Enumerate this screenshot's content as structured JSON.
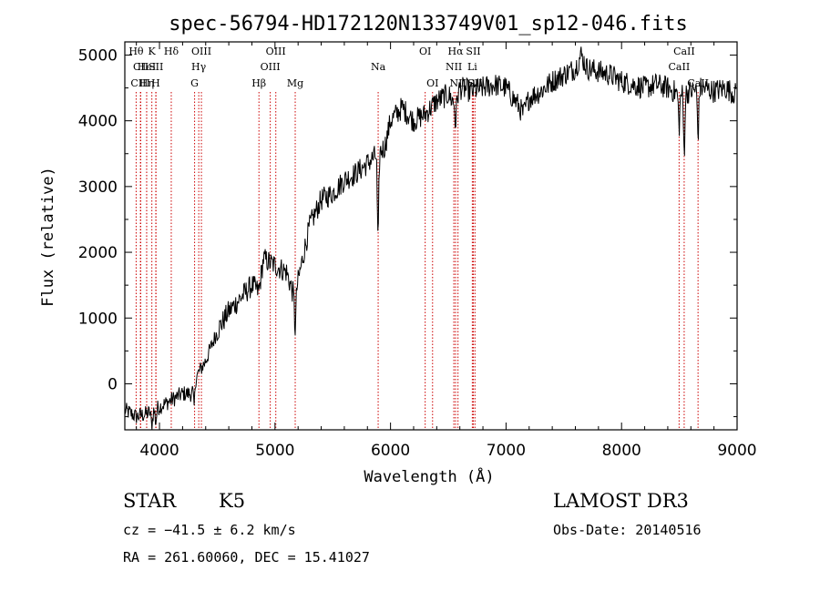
{
  "chart_data": {
    "type": "line",
    "title": "spec-56794-HD172120N133749V01_sp12-046.fits",
    "xlabel": "Wavelength (Å)",
    "ylabel": "Flux (relative)",
    "xlim": [
      3700,
      9000
    ],
    "ylim": [
      -700,
      5200
    ],
    "xticks": [
      4000,
      5000,
      6000,
      7000,
      8000,
      9000
    ],
    "yticks": [
      0,
      1000,
      2000,
      3000,
      4000,
      5000
    ],
    "spectrum_knots": [
      [
        3700,
        -400
      ],
      [
        3800,
        -500
      ],
      [
        3900,
        -450
      ],
      [
        4000,
        -350
      ],
      [
        4100,
        -250
      ],
      [
        4200,
        -150
      ],
      [
        4280,
        -150
      ],
      [
        4300,
        50
      ],
      [
        4400,
        350
      ],
      [
        4500,
        800
      ],
      [
        4600,
        1100
      ],
      [
        4700,
        1300
      ],
      [
        4800,
        1500
      ],
      [
        4860,
        1400
      ],
      [
        4900,
        1900
      ],
      [
        5000,
        1800
      ],
      [
        5100,
        1700
      ],
      [
        5170,
        1300
      ],
      [
        5250,
        2000
      ],
      [
        5300,
        2400
      ],
      [
        5400,
        2800
      ],
      [
        5500,
        2900
      ],
      [
        5600,
        3100
      ],
      [
        5700,
        3200
      ],
      [
        5800,
        3350
      ],
      [
        5890,
        3500
      ],
      [
        5950,
        3600
      ],
      [
        6000,
        4000
      ],
      [
        6100,
        4200
      ],
      [
        6200,
        4000
      ],
      [
        6300,
        4100
      ],
      [
        6400,
        4300
      ],
      [
        6500,
        4400
      ],
      [
        6560,
        4250
      ],
      [
        6600,
        4500
      ],
      [
        6700,
        4450
      ],
      [
        6800,
        4500
      ],
      [
        6900,
        4550
      ],
      [
        7000,
        4500
      ],
      [
        7100,
        4250
      ],
      [
        7150,
        4100
      ],
      [
        7200,
        4350
      ],
      [
        7300,
        4450
      ],
      [
        7400,
        4600
      ],
      [
        7500,
        4700
      ],
      [
        7600,
        4800
      ],
      [
        7650,
        5000
      ],
      [
        7700,
        4800
      ],
      [
        7800,
        4750
      ],
      [
        7900,
        4700
      ],
      [
        8000,
        4600
      ],
      [
        8100,
        4550
      ],
      [
        8200,
        4500
      ],
      [
        8300,
        4550
      ],
      [
        8400,
        4500
      ],
      [
        8450,
        4450
      ],
      [
        8500,
        4400
      ],
      [
        8600,
        4450
      ],
      [
        8700,
        4500
      ],
      [
        8800,
        4450
      ],
      [
        8900,
        4500
      ],
      [
        8990,
        4400
      ]
    ],
    "absorption_dips": [
      [
        3934,
        -250
      ],
      [
        3968,
        -200
      ],
      [
        4300,
        -400
      ],
      [
        5175,
        -500
      ],
      [
        5892,
        -1400
      ],
      [
        6563,
        -300
      ],
      [
        8498,
        -500
      ],
      [
        8542,
        -900
      ],
      [
        8662,
        -700
      ]
    ],
    "noise_amplitude": 180,
    "spectral_lines": [
      {
        "label": "Hθ",
        "wavelength": 3798,
        "row": 1
      },
      {
        "label": "CII",
        "wavelength": 3838,
        "row": 2
      },
      {
        "label": "CIII",
        "wavelength": 3835,
        "row": 3
      },
      {
        "label": "Hη",
        "wavelength": 3889,
        "row": 3
      },
      {
        "label": "HeI",
        "wavelength": 3889,
        "row": 2
      },
      {
        "label": "K",
        "wavelength": 3934,
        "row": 1
      },
      {
        "label": "SII",
        "wavelength": 3970,
        "row": 2
      },
      {
        "label": "H",
        "wavelength": 3968,
        "row": 3
      },
      {
        "label": "Hδ",
        "wavelength": 4102,
        "row": 1
      },
      {
        "label": "OIII",
        "wavelength": 4363,
        "row": 1
      },
      {
        "label": "Hγ",
        "wavelength": 4340,
        "row": 2
      },
      {
        "label": "G",
        "wavelength": 4304,
        "row": 3
      },
      {
        "label": "Hβ",
        "wavelength": 4861,
        "row": 3
      },
      {
        "label": "OIII",
        "wavelength": 4959,
        "row": 2
      },
      {
        "label": "OIII",
        "wavelength": 5007,
        "row": 1
      },
      {
        "label": "Mg",
        "wavelength": 5175,
        "row": 3
      },
      {
        "label": "Na",
        "wavelength": 5893,
        "row": 2
      },
      {
        "label": "OI",
        "wavelength": 6300,
        "row": 1
      },
      {
        "label": "OI",
        "wavelength": 6364,
        "row": 3
      },
      {
        "label": "Hα",
        "wavelength": 6563,
        "row": 1
      },
      {
        "label": "NII",
        "wavelength": 6548,
        "row": 2
      },
      {
        "label": "NII",
        "wavelength": 6584,
        "row": 3
      },
      {
        "label": "SII",
        "wavelength": 6717,
        "row": 1
      },
      {
        "label": "Li",
        "wavelength": 6708,
        "row": 2
      },
      {
        "label": "SII",
        "wavelength": 6731,
        "row": 3
      },
      {
        "label": "CaII",
        "wavelength": 8542,
        "row": 1
      },
      {
        "label": "CaII",
        "wavelength": 8498,
        "row": 2
      },
      {
        "label": "CaII",
        "wavelength": 8662,
        "row": 3
      }
    ],
    "colors": {
      "spectrum": "#000000",
      "lines": "#cc0000"
    }
  },
  "info": {
    "object_class": "STAR",
    "subclass": "K5",
    "survey": "LAMOST DR3",
    "cz": "cz = −41.5 ± 6.2 km/s",
    "obs_date": "Obs-Date: 20140516",
    "coords": "RA = 261.60060, DEC =  15.41027"
  }
}
